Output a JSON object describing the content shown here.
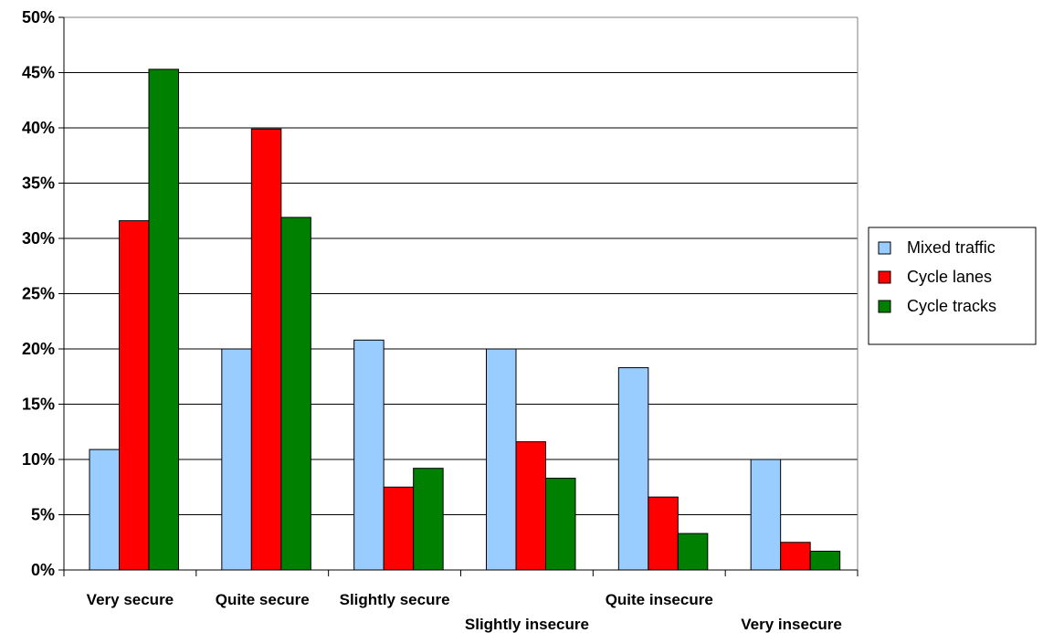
{
  "chart_data": {
    "type": "bar",
    "title": "",
    "xlabel": "",
    "ylabel": "",
    "ylim": [
      0,
      50
    ],
    "y_unit": "%",
    "y_ticks": [
      0,
      5,
      10,
      15,
      20,
      25,
      30,
      35,
      40,
      45,
      50
    ],
    "y_tick_labels": [
      "0%",
      "5%",
      "10%",
      "15%",
      "20%",
      "25%",
      "30%",
      "35%",
      "40%",
      "45%",
      "50%"
    ],
    "grid": true,
    "legend_position": "right",
    "categories": [
      "Very secure",
      "Quite secure",
      "Slightly secure",
      "Slightly insecure",
      "Quite insecure",
      "Very insecure"
    ],
    "series": [
      {
        "name": "Mixed traffic",
        "color": "#99CCFF",
        "values": [
          10.9,
          20.0,
          20.8,
          20.0,
          18.3,
          10.0
        ]
      },
      {
        "name": "Cycle lanes",
        "color": "#FF0000",
        "values": [
          31.6,
          39.9,
          7.5,
          11.6,
          6.6,
          2.5
        ]
      },
      {
        "name": "Cycle tracks",
        "color": "#008000",
        "values": [
          45.3,
          31.9,
          9.2,
          8.3,
          3.3,
          1.7
        ]
      }
    ]
  }
}
